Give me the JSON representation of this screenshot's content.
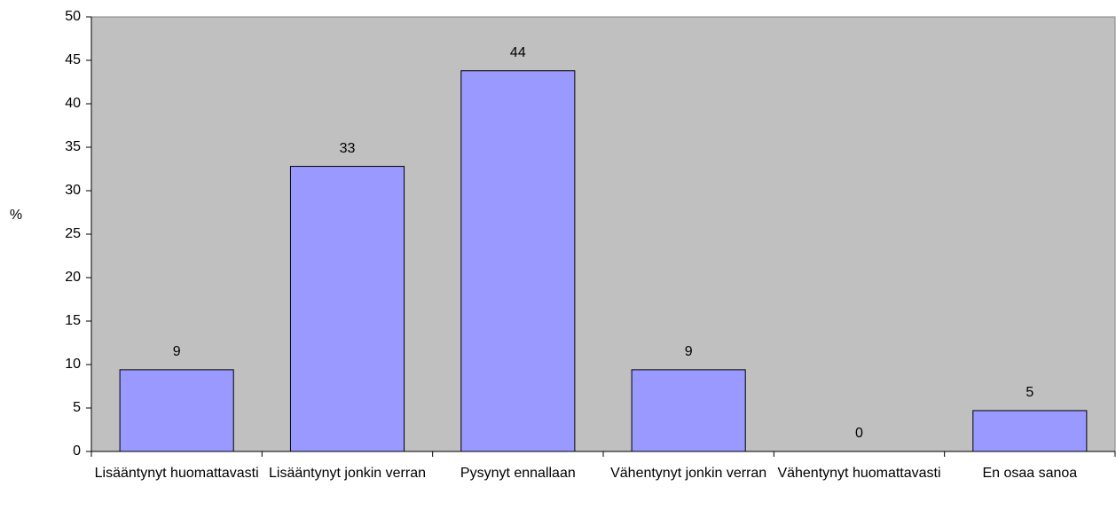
{
  "chart_data": {
    "type": "bar",
    "ylabel": "%",
    "categories": [
      "Lisääntynyt huomattavasti",
      "Lisääntynyt jonkin verran",
      "Pysynyt ennallaan",
      "Vähentynyt jonkin verran",
      "Vähentynyt huomattavasti",
      "En osaa sanoa"
    ],
    "values": [
      9.4,
      32.8,
      43.8,
      9.4,
      0,
      4.7
    ],
    "value_labels": [
      "9",
      "33",
      "44",
      "9",
      "0",
      "5"
    ],
    "color": "#9999ff",
    "ylim": [
      0,
      50
    ],
    "yticks": [
      0,
      5,
      10,
      15,
      20,
      25,
      30,
      35,
      40,
      45,
      50
    ],
    "grid": false
  }
}
